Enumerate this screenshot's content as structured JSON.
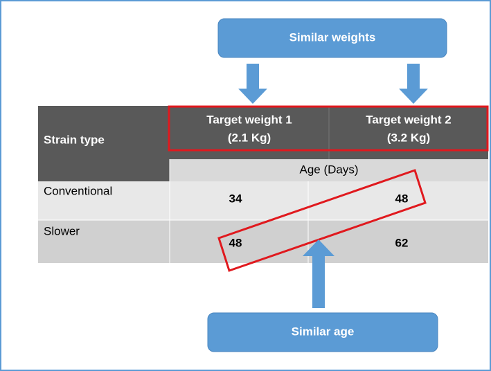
{
  "callouts": {
    "top": "Similar weights",
    "bottom": "Similar age"
  },
  "table": {
    "header": {
      "strain": "Strain type",
      "columns": [
        [
          "Target weight 1",
          "(2.1 Kg)"
        ],
        [
          "Target weight 2",
          "(3.2 Kg)"
        ]
      ]
    },
    "subheader": "Age (Days)",
    "rows": [
      [
        "Conventional",
        34,
        48
      ],
      [
        "Slower",
        48,
        62
      ]
    ]
  }
}
